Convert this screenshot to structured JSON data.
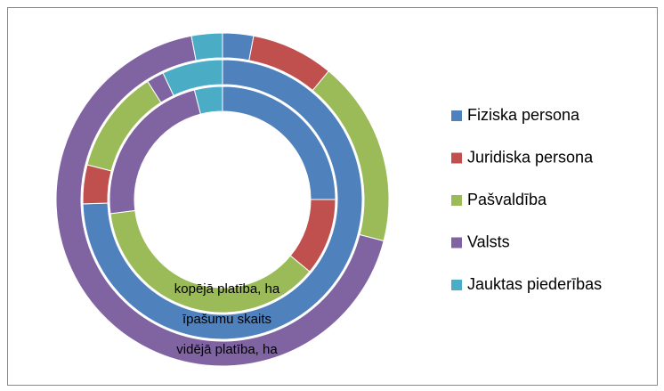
{
  "chart_data": {
    "type": "doughnut",
    "categories": [
      "Fiziska persona",
      "Juridiska persona",
      "Pašvaldība",
      "Valsts",
      "Jauktas piederības"
    ],
    "colors": [
      "#4f81bd",
      "#c0504d",
      "#9bbb59",
      "#8064a2",
      "#4bacc6"
    ],
    "series": [
      {
        "name": "kopējā platība, ha",
        "values": [
          25,
          11,
          37,
          23,
          4
        ]
      },
      {
        "name": "īpašumu skaits",
        "values": [
          74.5,
          4.5,
          12,
          2,
          7
        ]
      },
      {
        "name": "vidējā platība, ha",
        "values": [
          3,
          8,
          18,
          68,
          3
        ]
      }
    ],
    "legend": "right"
  }
}
